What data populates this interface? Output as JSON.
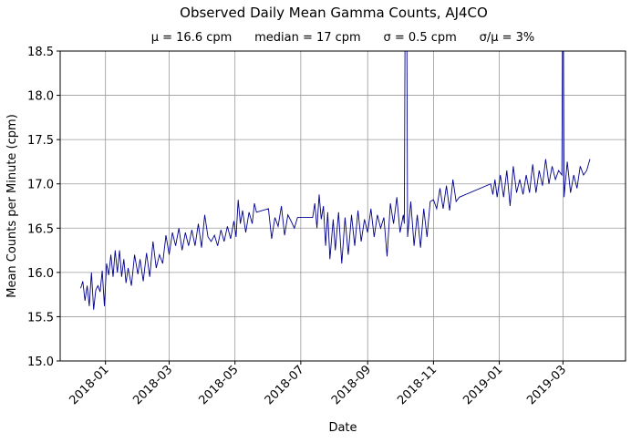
{
  "chart_data": {
    "type": "line",
    "title": "Observed Daily Mean Gamma Counts, AJ4CO",
    "subtitle": "μ = 16.6 cpm      median = 17 cpm      σ = 0.5 cpm      σ/μ = 3%",
    "xlabel": "Date",
    "ylabel": "Mean Counts per Minute (cpm)",
    "ylim": [
      15.0,
      18.5
    ],
    "xlim": [
      "2017-11-20",
      "2019-04-28"
    ],
    "yticks": [
      "15.0",
      "15.5",
      "16.0",
      "16.5",
      "17.0",
      "17.5",
      "18.0",
      "18.5"
    ],
    "xticks": [
      "2018-01",
      "2018-03",
      "2018-05",
      "2018-07",
      "2018-09",
      "2018-11",
      "2019-01",
      "2019-03"
    ],
    "grid": true,
    "line_color": "#00008b",
    "series": [
      {
        "x": [
          "2017-12-09",
          "2017-12-11",
          "2017-12-13",
          "2017-12-15",
          "2017-12-17",
          "2017-12-19",
          "2017-12-21",
          "2017-12-23",
          "2017-12-25",
          "2017-12-27",
          "2017-12-29",
          "2017-12-31",
          "2018-01-02",
          "2018-01-04",
          "2018-01-06",
          "2018-01-08",
          "2018-01-10",
          "2018-01-12",
          "2018-01-14",
          "2018-01-16",
          "2018-01-18",
          "2018-01-20",
          "2018-01-22",
          "2018-01-25",
          "2018-01-28",
          "2018-01-31",
          "2018-02-02",
          "2018-02-05",
          "2018-02-08",
          "2018-02-11",
          "2018-02-14",
          "2018-02-17",
          "2018-02-20",
          "2018-02-23",
          "2018-02-26",
          "2018-03-01",
          "2018-03-04",
          "2018-03-07",
          "2018-03-10",
          "2018-03-13",
          "2018-03-16",
          "2018-03-19",
          "2018-03-22",
          "2018-03-25",
          "2018-03-28",
          "2018-03-31",
          "2018-04-03",
          "2018-04-06",
          "2018-04-09",
          "2018-04-12",
          "2018-04-15",
          "2018-04-18",
          "2018-04-21",
          "2018-04-24",
          "2018-04-27",
          "2018-04-30",
          "2018-05-02",
          "2018-05-04",
          "2018-05-06",
          "2018-05-08",
          "2018-05-11",
          "2018-05-14",
          "2018-05-17",
          "2018-05-19",
          "2018-05-21",
          "2018-06-01",
          "2018-06-04",
          "2018-06-07",
          "2018-06-10",
          "2018-06-13",
          "2018-06-16",
          "2018-06-19",
          "2018-06-22",
          "2018-06-25",
          "2018-06-28",
          "2018-07-01",
          "2018-07-12",
          "2018-07-14",
          "2018-07-16",
          "2018-07-18",
          "2018-07-20",
          "2018-07-22",
          "2018-07-24",
          "2018-07-26",
          "2018-07-28",
          "2018-07-31",
          "2018-08-02",
          "2018-08-05",
          "2018-08-08",
          "2018-08-11",
          "2018-08-14",
          "2018-08-17",
          "2018-08-20",
          "2018-08-23",
          "2018-08-26",
          "2018-08-29",
          "2018-09-01",
          "2018-09-04",
          "2018-09-07",
          "2018-09-10",
          "2018-09-13",
          "2018-09-16",
          "2018-09-19",
          "2018-09-22",
          "2018-09-25",
          "2018-09-28",
          "2018-10-01",
          "2018-10-04",
          "2018-10-05",
          "2018-10-06",
          "2018-10-07",
          "2018-10-08",
          "2018-10-11",
          "2018-10-14",
          "2018-10-17",
          "2018-10-20",
          "2018-10-23",
          "2018-10-26",
          "2018-10-29",
          "2018-11-01",
          "2018-11-04",
          "2018-11-07",
          "2018-11-10",
          "2018-11-13",
          "2018-11-16",
          "2018-11-19",
          "2018-11-22",
          "2018-11-25",
          "2018-12-24",
          "2018-12-26",
          "2018-12-28",
          "2018-12-30",
          "2019-01-02",
          "2019-01-05",
          "2019-01-08",
          "2019-01-11",
          "2019-01-14",
          "2019-01-17",
          "2019-01-20",
          "2019-01-23",
          "2019-01-26",
          "2019-01-29",
          "2019-02-01",
          "2019-02-04",
          "2019-02-07",
          "2019-02-10",
          "2019-02-13",
          "2019-02-16",
          "2019-02-19",
          "2019-02-22",
          "2019-02-25",
          "2019-02-28",
          "2019-03-01",
          "2019-03-02",
          "2019-03-05",
          "2019-03-08",
          "2019-03-11",
          "2019-03-14",
          "2019-03-17",
          "2019-03-20",
          "2019-03-23",
          "2019-03-26"
        ],
        "y": [
          15.82,
          15.9,
          15.68,
          15.85,
          15.62,
          16.0,
          15.58,
          15.8,
          15.85,
          15.78,
          16.02,
          15.62,
          16.1,
          15.97,
          16.2,
          15.95,
          16.25,
          16.0,
          16.25,
          15.95,
          16.15,
          15.88,
          16.05,
          15.85,
          16.2,
          15.98,
          16.15,
          15.9,
          16.22,
          15.95,
          16.35,
          16.05,
          16.2,
          16.1,
          16.42,
          16.2,
          16.45,
          16.3,
          16.5,
          16.25,
          16.45,
          16.3,
          16.48,
          16.3,
          16.55,
          16.28,
          16.65,
          16.4,
          16.35,
          16.42,
          16.3,
          16.48,
          16.35,
          16.52,
          16.38,
          16.58,
          16.4,
          16.82,
          16.55,
          16.7,
          16.45,
          16.68,
          16.55,
          16.78,
          16.68,
          16.72,
          16.38,
          16.62,
          16.52,
          16.75,
          16.42,
          16.65,
          16.58,
          16.5,
          16.62,
          16.62,
          16.62,
          16.78,
          16.5,
          16.88,
          16.6,
          16.75,
          16.3,
          16.68,
          16.15,
          16.6,
          16.25,
          16.68,
          16.1,
          16.62,
          16.2,
          16.65,
          16.3,
          16.7,
          16.35,
          16.6,
          16.45,
          16.72,
          16.4,
          16.65,
          16.5,
          16.62,
          16.18,
          16.78,
          16.55,
          16.85,
          16.45,
          16.65,
          16.55,
          19.8,
          19.8,
          16.4,
          16.8,
          16.3,
          16.65,
          16.28,
          16.72,
          16.4,
          16.8,
          16.82,
          16.72,
          16.95,
          16.72,
          16.98,
          16.7,
          17.05,
          16.8,
          16.85,
          17.0,
          16.88,
          17.05,
          16.85,
          17.1,
          16.85,
          17.15,
          16.75,
          17.2,
          16.9,
          17.05,
          16.88,
          17.1,
          16.9,
          17.22,
          16.9,
          17.15,
          16.98,
          17.28,
          17.0,
          17.2,
          17.05,
          17.15,
          17.1,
          20.0,
          16.85,
          17.25,
          16.9,
          17.1,
          16.95,
          17.2,
          17.1,
          17.15,
          17.28
        ]
      }
    ]
  }
}
